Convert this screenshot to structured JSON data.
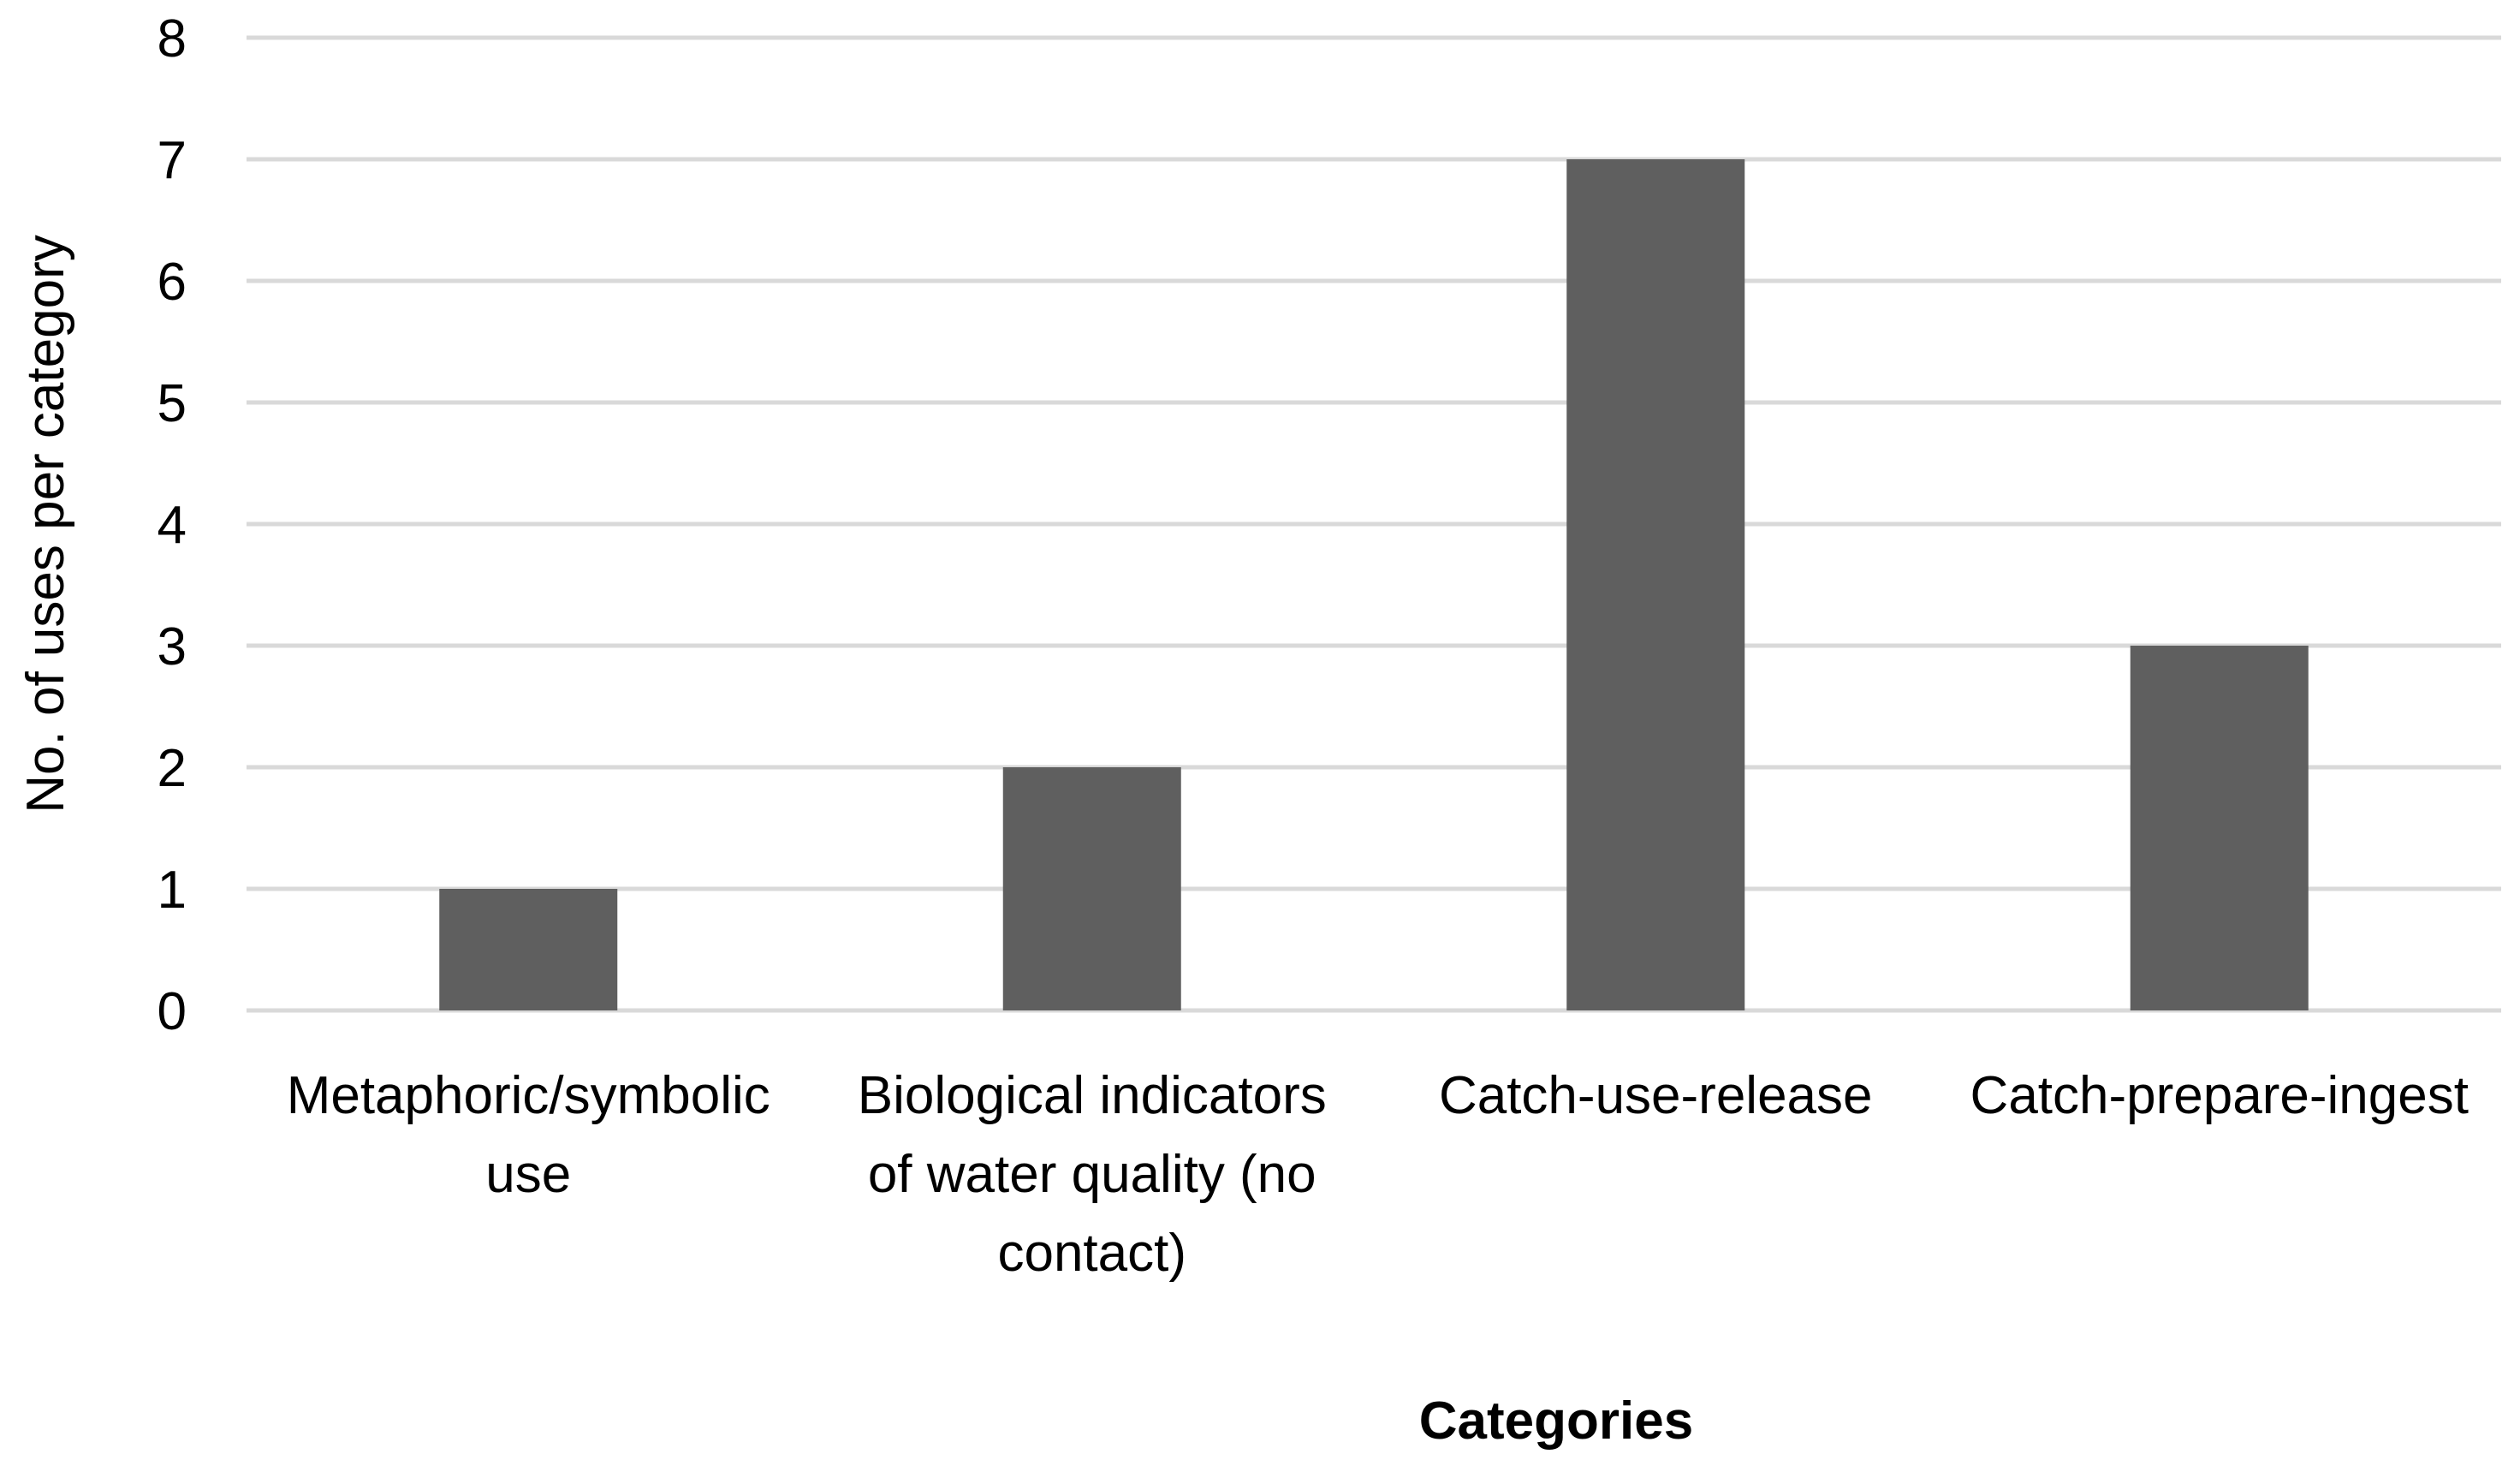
{
  "chart_data": {
    "type": "bar",
    "title": "",
    "xlabel": "Categories",
    "ylabel": "No. of uses per category",
    "categories": [
      [
        "Metaphoric/symbolic",
        "use"
      ],
      [
        "Biological indicators",
        "of water quality (no",
        "contact)"
      ],
      [
        "Catch-use-release"
      ],
      [
        "Catch-prepare-ingest"
      ]
    ],
    "values": [
      1,
      2,
      7,
      3
    ],
    "ylim": [
      0,
      8
    ],
    "yticks": [
      0,
      1,
      2,
      3,
      4,
      5,
      6,
      7,
      8
    ],
    "grid": true,
    "legend": "none",
    "bar_color": "#5f5f5f",
    "grid_color": "#d9d9d9"
  }
}
